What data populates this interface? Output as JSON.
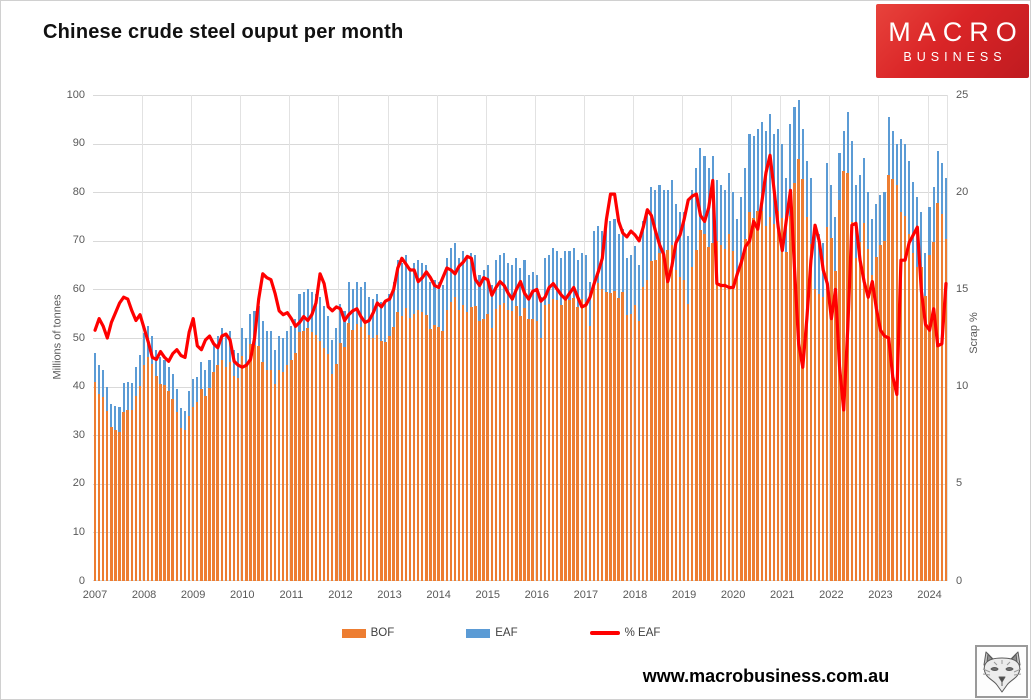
{
  "header": {
    "title": "Chinese crude steel ouput per month"
  },
  "logo": {
    "line1": "MACRO",
    "line2": "BUSINESS"
  },
  "footer": {
    "url": "www.macrobusiness.com.au"
  },
  "legend": [
    {
      "label": "BOF",
      "type": "bar",
      "color": "#ED7D31"
    },
    {
      "label": "EAF",
      "type": "bar",
      "color": "#5B9BD5"
    },
    {
      "label": "% EAF",
      "type": "line",
      "color": "#FF0000"
    }
  ],
  "chart_data": {
    "type": "bar",
    "subtype": "stacked-bars-with-line",
    "title": "Chinese crude steel ouput per month",
    "start_month": "2007-01",
    "end_month": "2024-05",
    "x_years": [
      "2007",
      "2008",
      "2009",
      "2010",
      "2011",
      "2012",
      "2013",
      "2014",
      "2015",
      "2016",
      "2017",
      "2018",
      "2019",
      "2020",
      "2021",
      "2022",
      "2023",
      "2024"
    ],
    "left_axis": {
      "label": "Millions of tonnes",
      "min": 0,
      "max": 100,
      "step": 10
    },
    "right_axis": {
      "label": "Scrap %",
      "min": 0,
      "max": 25,
      "step": 5
    },
    "grid": true,
    "legend_position": "bottom",
    "series": [
      {
        "name": "BOF",
        "type": "bar",
        "stack": true,
        "axis": "left",
        "color": "#ED7D31",
        "values": [
          40.9,
          38.5,
          37.8,
          35.0,
          31.6,
          31.0,
          30.7,
          34.8,
          35.1,
          35.1,
          38.1,
          40.1,
          44.4,
          46.0,
          44.7,
          42.1,
          40.6,
          40.3,
          39.0,
          37.5,
          34.8,
          31.4,
          31.0,
          34.0,
          35.9,
          36.9,
          39.6,
          38.1,
          39.8,
          43.0,
          44.4,
          45.4,
          44.1,
          45.1,
          42.1,
          41.8,
          46.3,
          44.4,
          48.7,
          48.6,
          48.3,
          45.0,
          43.5,
          43.5,
          40.5,
          43.5,
          43.1,
          44.4,
          45.4,
          46.9,
          51.2,
          51.4,
          52.0,
          51.3,
          50.6,
          49.3,
          47.9,
          46.8,
          42.6,
          44.7,
          49.0,
          48.1,
          53.1,
          51.7,
          52.9,
          52.3,
          53.3,
          50.7,
          50.0,
          50.6,
          49.4,
          49.2,
          50.4,
          52.3,
          55.4,
          54.6,
          56.1,
          54.2,
          55.0,
          55.8,
          55.3,
          54.7,
          51.9,
          52.6,
          52.2,
          51.5,
          55.8,
          57.5,
          58.5,
          55.7,
          56.8,
          55.4,
          56.3,
          56.6,
          53.4,
          54.0,
          54.9,
          52.0,
          56.0,
          56.7,
          57.2,
          55.8,
          55.6,
          56.5,
          54.6,
          56.2,
          53.9,
          54.0,
          53.5,
          50.1,
          56.8,
          56.9,
          58.0,
          57.8,
          56.7,
          58.1,
          57.9,
          58.2,
          56.4,
          58.0,
          57.5,
          52.5,
          61.0,
          61.4,
          60.0,
          59.4,
          59.3,
          59.7,
          58.3,
          59.5,
          54.7,
          54.9,
          56.7,
          53.6,
          60.5,
          61.9,
          65.8,
          66.0,
          67.4,
          67.0,
          68.1,
          69.1,
          64.0,
          62.5,
          61.9,
          57.1,
          64.6,
          68.1,
          72.3,
          71.3,
          68.7,
          69.5,
          69.9,
          69.1,
          68.3,
          71.3,
          67.9,
          62.7,
          66.0,
          70.4,
          75.9,
          74.6,
          76.2,
          76.1,
          73.1,
          75.0,
          73.5,
          76.1,
          74.7,
          67.6,
          75.1,
          81.9,
          86.9,
          82.8,
          74.8,
          69.3,
          60.0,
          59.0,
          58.4,
          72.8,
          70.5,
          63.7,
          78.3,
          84.4,
          84.0,
          73.9,
          66.5,
          69.7,
          73.6,
          68.3,
          63.0,
          66.6,
          69.2,
          69.9,
          83.6,
          82.8,
          81.4,
          76.0,
          75.1,
          71.4,
          67.4,
          64.6,
          64.7,
          58.6,
          67.1,
          69.7,
          77.8,
          75.5,
          70.3
        ]
      },
      {
        "name": "EAF",
        "type": "bar",
        "stack": true,
        "axis": "left",
        "color": "#5B9BD5",
        "values": [
          6.1,
          6.0,
          5.7,
          5.0,
          4.9,
          5.0,
          5.1,
          6.0,
          5.9,
          5.7,
          5.9,
          6.4,
          6.6,
          6.5,
          5.8,
          5.4,
          5.4,
          5.2,
          5.0,
          5.0,
          4.7,
          4.1,
          4.0,
          5.0,
          5.6,
          5.1,
          5.4,
          5.4,
          5.7,
          6.0,
          6.1,
          6.6,
          6.4,
          6.4,
          5.4,
          5.2,
          5.7,
          5.6,
          6.3,
          6.9,
          8.2,
          8.5,
          8.0,
          8.0,
          7.0,
          7.0,
          6.9,
          7.1,
          7.1,
          7.1,
          7.8,
          8.1,
          8.0,
          8.2,
          8.4,
          9.2,
          8.6,
          7.7,
          6.9,
          7.3,
          8.0,
          7.4,
          8.4,
          8.3,
          8.6,
          8.2,
          8.2,
          7.8,
          8.0,
          8.4,
          8.1,
          8.3,
          8.6,
          9.2,
          10.6,
          10.9,
          10.9,
          10.3,
          10.5,
          10.2,
          10.2,
          10.3,
          9.6,
          9.4,
          9.3,
          9.5,
          10.7,
          11.0,
          11.0,
          10.8,
          11.2,
          11.1,
          11.2,
          10.4,
          9.6,
          10.0,
          10.1,
          9.0,
          10.0,
          10.3,
          10.3,
          9.7,
          9.4,
          10.0,
          9.9,
          9.8,
          9.1,
          9.5,
          9.5,
          8.4,
          9.7,
          10.1,
          10.5,
          10.2,
          9.8,
          9.9,
          10.1,
          10.3,
          9.6,
          9.5,
          9.5,
          9.0,
          11.0,
          11.6,
          12.0,
          13.6,
          14.7,
          14.8,
          13.2,
          13.0,
          11.8,
          12.1,
          12.3,
          11.4,
          13.5,
          14.6,
          15.2,
          14.5,
          14.1,
          13.5,
          12.4,
          13.4,
          13.5,
          13.5,
          14.1,
          13.9,
          15.9,
          16.9,
          16.7,
          16.2,
          16.3,
          18.0,
          12.6,
          12.4,
          12.2,
          12.7,
          12.1,
          11.8,
          13.0,
          14.6,
          16.1,
          16.9,
          16.8,
          18.4,
          19.4,
          21.0,
          18.5,
          16.9,
          15.3,
          15.4,
          18.9,
          15.6,
          12.1,
          10.2,
          11.7,
          13.7,
          13.5,
          12.5,
          11.1,
          13.2,
          11.0,
          11.3,
          9.7,
          8.1,
          12.5,
          16.6,
          15.0,
          13.8,
          13.4,
          11.7,
          11.5,
          10.9,
          10.3,
          10.1,
          11.9,
          9.7,
          8.6,
          15.0,
          14.9,
          15.1,
          14.6,
          14.4,
          11.3,
          8.9,
          9.9,
          11.3,
          10.7,
          10.5,
          12.7
        ]
      },
      {
        "name": "% EAF",
        "type": "line",
        "stack": false,
        "axis": "right",
        "color": "#FF0000",
        "values": [
          12.9,
          13.5,
          13.1,
          12.5,
          13.3,
          13.8,
          14.3,
          14.6,
          14.5,
          13.9,
          13.4,
          13.7,
          13.0,
          12.3,
          11.5,
          11.4,
          11.8,
          11.5,
          11.3,
          11.7,
          11.9,
          11.6,
          11.5,
          12.8,
          13.5,
          12.1,
          11.9,
          12.4,
          12.6,
          12.2,
          12.0,
          12.6,
          12.7,
          12.4,
          11.3,
          11.1,
          11.0,
          11.1,
          11.4,
          12.5,
          14.5,
          15.8,
          15.6,
          15.5,
          14.8,
          13.9,
          13.7,
          13.8,
          13.5,
          13.1,
          13.3,
          13.6,
          13.4,
          13.7,
          14.3,
          15.8,
          15.3,
          14.1,
          13.9,
          14.1,
          14.0,
          13.4,
          13.7,
          13.9,
          14.0,
          13.6,
          13.3,
          13.4,
          13.8,
          14.3,
          14.1,
          14.4,
          14.5,
          15.0,
          16.1,
          16.6,
          16.3,
          16.0,
          16.0,
          15.4,
          15.6,
          15.9,
          15.6,
          15.2,
          15.1,
          15.6,
          16.1,
          16.0,
          15.8,
          16.2,
          16.4,
          16.7,
          16.6,
          15.5,
          15.2,
          15.6,
          15.5,
          14.7,
          15.1,
          15.4,
          15.2,
          14.8,
          14.5,
          15.0,
          15.4,
          14.8,
          14.5,
          14.9,
          15.0,
          14.4,
          14.6,
          15.1,
          15.3,
          15.0,
          14.7,
          14.5,
          14.8,
          15.1,
          14.6,
          14.1,
          14.2,
          14.6,
          15.3,
          15.9,
          16.6,
          18.6,
          19.9,
          19.9,
          18.5,
          17.9,
          17.7,
          18.0,
          17.8,
          17.5,
          18.2,
          19.1,
          18.8,
          18.0,
          17.3,
          16.8,
          15.4,
          16.2,
          17.4,
          17.8,
          18.6,
          19.6,
          19.8,
          19.9,
          18.8,
          18.5,
          19.2,
          20.6,
          15.3,
          15.2,
          15.2,
          15.1,
          15.1,
          15.8,
          16.4,
          17.2,
          17.5,
          18.5,
          18.1,
          19.5,
          21.0,
          21.9,
          20.1,
          18.2,
          17.0,
          18.6,
          20.1,
          16.0,
          12.2,
          11.0,
          13.5,
          16.5,
          18.3,
          17.5,
          16.0,
          15.3,
          13.5,
          15.0,
          11.0,
          8.8,
          13.0,
          18.3,
          18.4,
          16.5,
          15.4,
          14.6,
          15.4,
          14.0,
          12.9,
          12.6,
          12.5,
          10.5,
          9.6,
          16.5,
          16.5,
          17.4,
          17.8,
          18.2,
          14.9,
          13.2,
          12.9,
          14.0,
          12.1,
          12.2,
          15.3
        ]
      }
    ]
  }
}
